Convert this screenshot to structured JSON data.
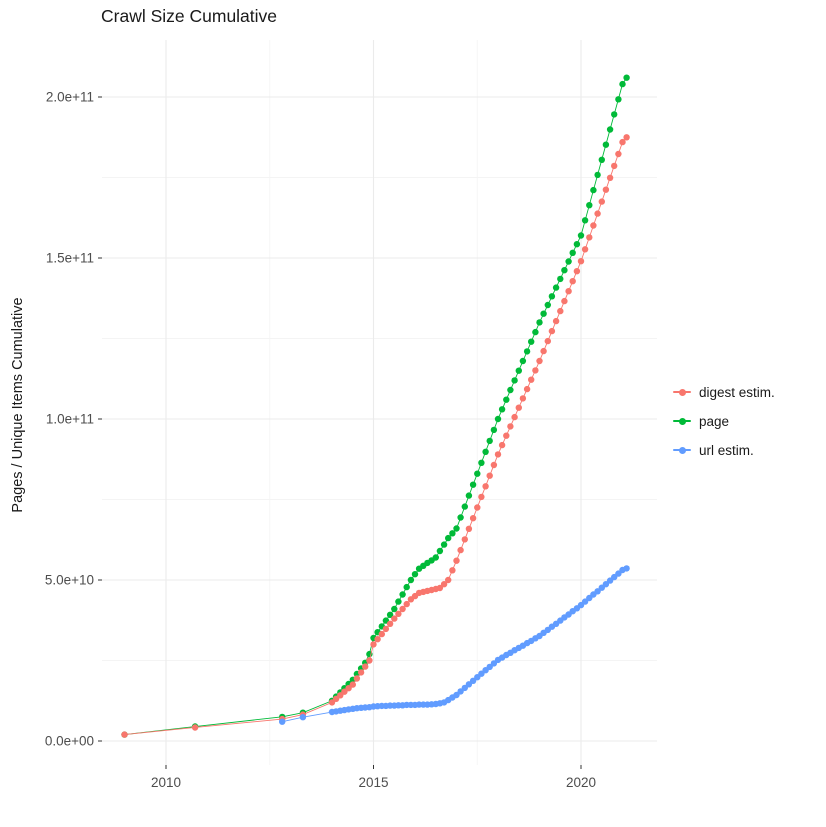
{
  "chart_data": {
    "type": "scatter",
    "title": "Crawl Size Cumulative",
    "xlabel": "",
    "ylabel": "Pages / Unique Items Cumulative",
    "grid": true,
    "legend_position": "right",
    "xlim": [
      2008.5,
      2021.8
    ],
    "ylim_billions": [
      -9,
      216
    ],
    "y_unit": "values stored in billions (1e9)",
    "x_ticks": {
      "values": [
        2010,
        2015,
        2020
      ],
      "labels": [
        "2010",
        "2015",
        "2020"
      ],
      "minor": [
        2012.5,
        2017.5
      ]
    },
    "y_ticks": {
      "values_billions": [
        0,
        50,
        100,
        150,
        200
      ],
      "labels": [
        "0.0e+00",
        "5.0e+10",
        "1.0e+11",
        "1.5e+11",
        "2.0e+11"
      ],
      "minor_billions": [
        25,
        75,
        125,
        175
      ]
    },
    "legend": [
      {
        "label": "digest estim.",
        "color": "#F8766D",
        "series": "digest"
      },
      {
        "label": "page",
        "color": "#00BA38",
        "series": "page"
      },
      {
        "label": "url estim.",
        "color": "#619CFF",
        "series": "url"
      }
    ],
    "draw_order": [
      "page",
      "digest",
      "url"
    ],
    "series": [
      {
        "name": "page",
        "label": "page",
        "color": "#00BA38",
        "x": [
          2009,
          2010.7,
          2012.8,
          2013.3,
          2014,
          2014.1,
          2014.2,
          2014.3,
          2014.4,
          2014.5,
          2014.6,
          2014.7,
          2014.8,
          2014.9,
          2015,
          2015.1,
          2015.2,
          2015.3,
          2015.4,
          2015.5,
          2015.6,
          2015.7,
          2015.8,
          2015.9,
          2016,
          2016.1,
          2016.2,
          2016.3,
          2016.4,
          2016.5,
          2016.6,
          2016.7,
          2016.8,
          2016.9,
          2017,
          2017.1,
          2017.2,
          2017.3,
          2017.4,
          2017.5,
          2017.6,
          2017.7,
          2017.8,
          2017.9,
          2018,
          2018.1,
          2018.2,
          2018.3,
          2018.4,
          2018.5,
          2018.6,
          2018.7,
          2018.8,
          2018.9,
          2019,
          2019.1,
          2019.2,
          2019.3,
          2019.4,
          2019.5,
          2019.6,
          2019.7,
          2019.8,
          2019.9,
          2020,
          2020.1,
          2020.2,
          2020.3,
          2020.4,
          2020.5,
          2020.6,
          2020.7,
          2020.8,
          2020.9,
          2021,
          2021.1
        ],
        "y_billions": [
          2.0,
          4.5,
          7.5,
          8.8,
          12.5,
          13.8,
          15.1,
          16.4,
          17.7,
          19.0,
          20.8,
          22.5,
          24.3,
          27.0,
          32.0,
          33.8,
          35.6,
          37.4,
          39.2,
          41.0,
          43.3,
          45.5,
          47.8,
          50.0,
          51.8,
          53.5,
          54.4,
          55.3,
          56.1,
          57.0,
          59.0,
          61.0,
          63.0,
          64.5,
          66.0,
          69.4,
          72.8,
          76.2,
          79.6,
          83.0,
          86.4,
          89.8,
          93.2,
          96.6,
          100.0,
          103.0,
          106.0,
          109.0,
          112.0,
          115.0,
          118.0,
          121.0,
          124.0,
          127.0,
          130.0,
          132.7,
          135.4,
          138.1,
          140.8,
          143.5,
          146.2,
          148.9,
          151.6,
          154.3,
          157.0,
          161.7,
          166.4,
          171.1,
          175.8,
          180.5,
          185.2,
          189.9,
          194.6,
          199.3,
          204.0,
          206.0
        ]
      },
      {
        "name": "digest",
        "label": "digest estim.",
        "color": "#F8766D",
        "x": [
          2009,
          2010.7,
          2012.8,
          2013.3,
          2014,
          2014.1,
          2014.2,
          2014.3,
          2014.4,
          2014.5,
          2014.6,
          2014.7,
          2014.8,
          2014.9,
          2015,
          2015.1,
          2015.2,
          2015.3,
          2015.4,
          2015.5,
          2015.6,
          2015.7,
          2015.8,
          2015.9,
          2016,
          2016.1,
          2016.2,
          2016.3,
          2016.4,
          2016.5,
          2016.6,
          2016.7,
          2016.8,
          2016.9,
          2017,
          2017.1,
          2017.2,
          2017.3,
          2017.4,
          2017.5,
          2017.6,
          2017.7,
          2017.8,
          2017.9,
          2018,
          2018.1,
          2018.2,
          2018.3,
          2018.4,
          2018.5,
          2018.6,
          2018.7,
          2018.8,
          2018.9,
          2019,
          2019.1,
          2019.2,
          2019.3,
          2019.4,
          2019.5,
          2019.6,
          2019.7,
          2019.8,
          2019.9,
          2020,
          2020.1,
          2020.2,
          2020.3,
          2020.4,
          2020.5,
          2020.6,
          2020.7,
          2020.8,
          2020.9,
          2021,
          2021.1
        ],
        "y_billions": [
          2.0,
          4.2,
          6.8,
          8.2,
          12.0,
          13.1,
          14.2,
          15.3,
          16.4,
          17.5,
          19.4,
          21.3,
          23.1,
          25.0,
          30.0,
          31.6,
          33.2,
          34.8,
          36.4,
          38.0,
          39.5,
          41.0,
          42.5,
          44.0,
          45.0,
          46.0,
          46.3,
          46.6,
          46.9,
          47.2,
          47.5,
          48.7,
          50.0,
          53.0,
          56.0,
          59.3,
          62.6,
          65.9,
          69.2,
          72.5,
          75.8,
          79.1,
          82.4,
          85.7,
          89.0,
          91.9,
          94.8,
          97.7,
          100.6,
          103.5,
          106.4,
          109.3,
          112.2,
          115.1,
          118.0,
          121.1,
          124.2,
          127.3,
          130.4,
          133.5,
          136.6,
          139.7,
          142.8,
          145.9,
          149.0,
          152.7,
          156.4,
          160.1,
          163.8,
          167.5,
          171.2,
          174.9,
          178.6,
          182.3,
          186.0,
          187.5
        ]
      },
      {
        "name": "url",
        "label": "url estim.",
        "color": "#619CFF",
        "x": [
          2012.8,
          2013.3,
          2014,
          2014.1,
          2014.2,
          2014.3,
          2014.4,
          2014.5,
          2014.6,
          2014.7,
          2014.8,
          2014.9,
          2015,
          2015.1,
          2015.2,
          2015.3,
          2015.4,
          2015.5,
          2015.6,
          2015.7,
          2015.8,
          2015.9,
          2016,
          2016.1,
          2016.2,
          2016.3,
          2016.4,
          2016.5,
          2016.6,
          2016.7,
          2016.8,
          2016.9,
          2017,
          2017.1,
          2017.2,
          2017.3,
          2017.4,
          2017.5,
          2017.6,
          2017.7,
          2017.8,
          2017.9,
          2018,
          2018.1,
          2018.2,
          2018.3,
          2018.4,
          2018.5,
          2018.6,
          2018.7,
          2018.8,
          2018.9,
          2019,
          2019.1,
          2019.2,
          2019.3,
          2019.4,
          2019.5,
          2019.6,
          2019.7,
          2019.8,
          2019.9,
          2020,
          2020.1,
          2020.2,
          2020.3,
          2020.4,
          2020.5,
          2020.6,
          2020.7,
          2020.8,
          2020.9,
          2021,
          2021.1
        ],
        "y_billions": [
          6.0,
          7.4,
          9.0,
          9.2,
          9.4,
          9.6,
          9.8,
          10.0,
          10.2,
          10.3,
          10.4,
          10.5,
          10.7,
          10.8,
          10.9,
          10.9,
          11.0,
          11.0,
          11.1,
          11.1,
          11.2,
          11.2,
          11.2,
          11.3,
          11.3,
          11.3,
          11.4,
          11.5,
          11.7,
          12.0,
          12.7,
          13.5,
          14.3,
          15.4,
          16.5,
          17.6,
          18.7,
          19.8,
          20.9,
          22.0,
          23.0,
          24.1,
          25.2,
          25.9,
          26.7,
          27.4,
          28.2,
          28.9,
          29.6,
          30.4,
          31.1,
          31.9,
          32.6,
          33.6,
          34.5,
          35.5,
          36.4,
          37.4,
          38.4,
          39.3,
          40.3,
          41.2,
          42.2,
          43.3,
          44.4,
          45.5,
          46.5,
          47.6,
          48.7,
          49.8,
          50.9,
          52.0,
          53.1,
          53.6
        ]
      }
    ],
    "style": {
      "grid_major_color": "#ebebeb",
      "grid_minor_color": "#f4f4f4",
      "tick_color": "#333333",
      "axis_text_color": "#4d4d4d",
      "point_radius": 3.2
    }
  }
}
